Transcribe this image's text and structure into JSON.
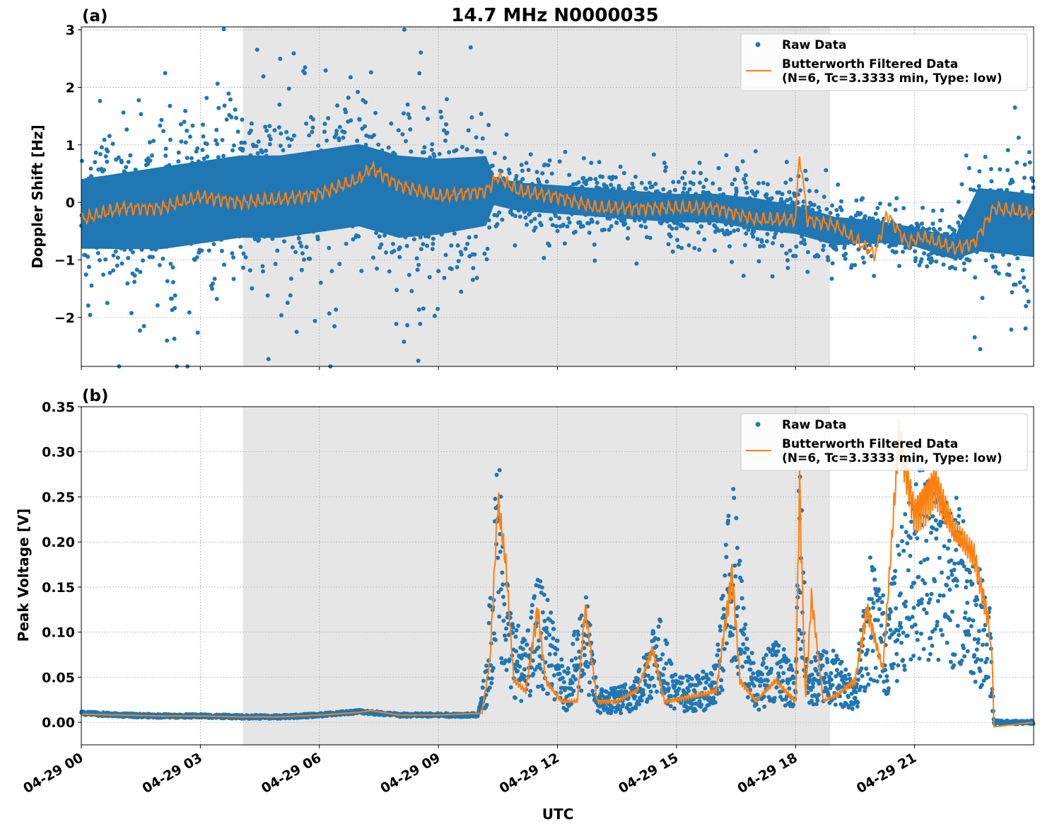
{
  "chart_data": [
    {
      "panel_label": "(a)",
      "title": "14.7 MHz N0000035",
      "type": "line",
      "ylabel": "Doppler Shift [Hz]",
      "xlabel": "",
      "xlim": [
        "04-29 00:00",
        "04-30 00:00"
      ],
      "ylim": [
        -2.85,
        3.05
      ],
      "x_ticks": [
        "04-29 00",
        "04-29 03",
        "04-29 06",
        "04-29 09",
        "04-29 12",
        "04-29 15",
        "04-29 18",
        "04-29 21"
      ],
      "y_ticks": [
        "−2",
        "−1",
        "0",
        "1",
        "2",
        "3"
      ],
      "grid": true,
      "shaded_region_hours": [
        4.07,
        18.87
      ],
      "legend_position": "top-right",
      "series": [
        {
          "name": "Raw Data",
          "style": "scatter",
          "color": "#1f77b4",
          "x_hours": [
            0,
            1,
            2,
            3,
            4,
            5,
            6,
            7,
            8,
            9,
            10.2,
            10.4,
            11,
            12,
            13,
            14,
            15,
            16,
            17,
            18,
            19,
            20,
            21,
            22,
            22.6,
            24
          ],
          "y_mean": [
            -0.2,
            -0.15,
            -0.1,
            0,
            0.1,
            0.1,
            0.2,
            0.3,
            0.1,
            0.1,
            0.2,
            0.2,
            0.1,
            0.05,
            0,
            -0.05,
            -0.1,
            -0.1,
            -0.2,
            -0.3,
            -0.5,
            -0.5,
            -0.6,
            -0.8,
            -0.3,
            -0.4
          ],
          "y_spread": [
            1.1,
            1.2,
            1.3,
            1.3,
            1.3,
            1.3,
            1.3,
            1.3,
            1.3,
            1.2,
            1.1,
            0.45,
            0.45,
            0.45,
            0.45,
            0.45,
            0.45,
            0.45,
            0.5,
            0.45,
            0.45,
            0.35,
            0.3,
            0.35,
            1.0,
            1.0
          ]
        },
        {
          "name": "Butterworth Filtered Data\n(N=6, Tc=3.3333 min, Type: low)",
          "style": "line",
          "color": "#ff7f0e",
          "x_hours": [
            0,
            1,
            2,
            3,
            4,
            5,
            6,
            7,
            7.3,
            8,
            9,
            10.2,
            10.5,
            11,
            12,
            13,
            14,
            15,
            16,
            17,
            17.5,
            18,
            18.1,
            18.3,
            19,
            20,
            20.3,
            20.8,
            21.2,
            22,
            22.5,
            23,
            24
          ],
          "values": [
            -0.3,
            -0.1,
            -0.1,
            0.1,
            0,
            0.05,
            0.15,
            0.4,
            0.6,
            0.3,
            0.1,
            0.2,
            0.45,
            0.2,
            0.1,
            -0.1,
            -0.1,
            -0.1,
            -0.1,
            -0.3,
            -0.3,
            -0.3,
            0.85,
            -0.3,
            -0.4,
            -0.9,
            -0.2,
            -0.7,
            -0.6,
            -0.8,
            -0.7,
            -0.1,
            -0.2
          ]
        }
      ]
    },
    {
      "panel_label": "(b)",
      "title": "",
      "type": "line",
      "ylabel": "Peak Voltage [V]",
      "xlabel": "UTC",
      "xlim": [
        "04-29 00:00",
        "04-30 00:00"
      ],
      "ylim": [
        -0.025,
        0.35
      ],
      "x_ticks": [
        "04-29 00",
        "04-29 03",
        "04-29 06",
        "04-29 09",
        "04-29 12",
        "04-29 15",
        "04-29 18",
        "04-29 21"
      ],
      "y_ticks": [
        "0.00",
        "0.05",
        "0.10",
        "0.15",
        "0.20",
        "0.25",
        "0.30",
        "0.35"
      ],
      "grid": true,
      "shaded_region_hours": [
        4.07,
        18.87
      ],
      "legend_position": "top-right",
      "series": [
        {
          "name": "Raw Data",
          "style": "scatter",
          "color": "#1f77b4",
          "x_hours": [
            0,
            1,
            2,
            3,
            4,
            5,
            6,
            7,
            8,
            9,
            10,
            10.2,
            10.5,
            10.8,
            11.2,
            11.5,
            11.8,
            12.2,
            12.7,
            13,
            13.5,
            14,
            14.5,
            15,
            15.5,
            16,
            16.4,
            16.7,
            17,
            17.5,
            18,
            18.1,
            18.3,
            18.8,
            19.5,
            19.9,
            20.3,
            21,
            21.5,
            22,
            22.5,
            22.9,
            23,
            24
          ],
          "values": [
            0.01,
            0.008,
            0.007,
            0.007,
            0.006,
            0.006,
            0.008,
            0.012,
            0.008,
            0.008,
            0.008,
            0.05,
            0.25,
            0.1,
            0.07,
            0.13,
            0.1,
            0.04,
            0.12,
            0.03,
            0.03,
            0.04,
            0.1,
            0.04,
            0.04,
            0.05,
            0.22,
            0.1,
            0.04,
            0.08,
            0.04,
            0.25,
            0.05,
            0.07,
            0.04,
            0.15,
            0.1,
            0.23,
            0.22,
            0.2,
            0.15,
            0.1,
            0.0,
            0.0
          ]
        },
        {
          "name": "Butterworth Filtered Data\n(N=6, Tc=3.3333 min, Type: low)",
          "style": "line",
          "color": "#ff7f0e",
          "x_hours": [
            0,
            1,
            2,
            3,
            4,
            5,
            6,
            7,
            7.3,
            8,
            9,
            10.1,
            10.3,
            10.5,
            10.7,
            10.9,
            11.2,
            11.5,
            11.7,
            12.1,
            12.5,
            12.7,
            13,
            13.5,
            14,
            14.4,
            14.7,
            15.5,
            16,
            16.4,
            16.6,
            17,
            17.5,
            18,
            18.1,
            18.25,
            18.4,
            18.7,
            19,
            19.5,
            19.8,
            20.2,
            20.6,
            21,
            21.5,
            22,
            22.5,
            22.8,
            22.95,
            23,
            24
          ],
          "values": [
            0.009,
            0.008,
            0.007,
            0.007,
            0.006,
            0.006,
            0.008,
            0.011,
            0.013,
            0.008,
            0.008,
            0.01,
            0.06,
            0.21,
            0.15,
            0.04,
            0.03,
            0.11,
            0.04,
            0.02,
            0.02,
            0.11,
            0.02,
            0.02,
            0.03,
            0.07,
            0.02,
            0.025,
            0.03,
            0.145,
            0.04,
            0.02,
            0.04,
            0.02,
            0.23,
            0.02,
            0.12,
            0.02,
            0.025,
            0.04,
            0.11,
            0.05,
            0.27,
            0.2,
            0.23,
            0.18,
            0.16,
            0.11,
            0.08,
            -0.005,
            0.0
          ]
        }
      ]
    }
  ]
}
